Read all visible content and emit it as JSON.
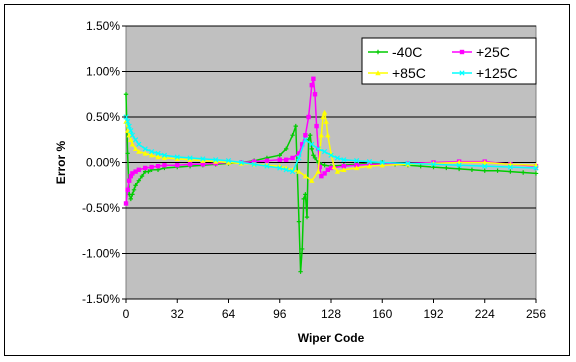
{
  "chart_data": {
    "type": "line",
    "title": "",
    "xlabel": "Wiper Code",
    "ylabel": "Error %",
    "xlim": [
      0,
      256
    ],
    "ylim": [
      -1.5,
      1.5
    ],
    "x_ticks": [
      0,
      32,
      64,
      96,
      128,
      160,
      192,
      224,
      256
    ],
    "y_ticks": [
      1.5,
      1.0,
      0.5,
      0.0,
      -0.5,
      -1.0,
      -1.5
    ],
    "y_tick_labels": [
      "1.50%",
      "1.00%",
      "0.50%",
      "0.00%",
      "-0.50%",
      "-1.00%",
      "-1.50%"
    ],
    "grid": "horizontal",
    "plot_background": "#c0c0c0",
    "legend": {
      "position": "top-right"
    },
    "series": [
      {
        "name": "-40C",
        "color": "#00cc00",
        "marker": "+",
        "x": [
          0,
          1,
          2,
          3,
          4,
          5,
          6,
          8,
          10,
          12,
          14,
          16,
          20,
          24,
          32,
          40,
          48,
          56,
          64,
          72,
          80,
          88,
          96,
          100,
          104,
          106,
          108,
          109,
          110,
          111,
          112,
          113,
          114,
          115,
          116,
          117,
          118,
          120,
          122,
          124,
          128,
          136,
          144,
          152,
          160,
          168,
          176,
          184,
          192,
          200,
          208,
          216,
          224,
          232,
          240,
          248,
          256
        ],
        "values": [
          0.75,
          0.1,
          -0.35,
          -0.4,
          -0.35,
          -0.3,
          -0.25,
          -0.2,
          -0.15,
          -0.1,
          -0.1,
          -0.08,
          -0.08,
          -0.06,
          -0.05,
          -0.04,
          -0.03,
          -0.02,
          -0.01,
          0.0,
          0.02,
          0.05,
          0.08,
          0.15,
          0.3,
          0.4,
          -0.65,
          -1.2,
          -0.95,
          -0.4,
          -0.35,
          -0.6,
          0.25,
          0.3,
          0.15,
          0.08,
          0.05,
          0.0,
          -0.02,
          -0.03,
          -0.04,
          -0.03,
          -0.02,
          -0.01,
          0.0,
          -0.02,
          -0.03,
          -0.04,
          -0.05,
          -0.06,
          -0.07,
          -0.08,
          -0.09,
          -0.09,
          -0.1,
          -0.11,
          -0.12
        ]
      },
      {
        "name": "+25C",
        "color": "#ff00ff",
        "marker": "square",
        "x": [
          0,
          1,
          2,
          3,
          4,
          6,
          8,
          12,
          16,
          20,
          24,
          32,
          40,
          48,
          56,
          64,
          72,
          80,
          88,
          96,
          100,
          104,
          108,
          110,
          112,
          114,
          116,
          117,
          118,
          119,
          120,
          121,
          122,
          124,
          126,
          128,
          136,
          144,
          152,
          160,
          176,
          192,
          208,
          224,
          240,
          256
        ],
        "values": [
          -0.45,
          -0.3,
          -0.2,
          -0.15,
          -0.12,
          -0.1,
          -0.08,
          -0.06,
          -0.05,
          -0.04,
          -0.03,
          -0.03,
          -0.02,
          -0.02,
          -0.01,
          0.0,
          0.0,
          0.01,
          0.02,
          0.03,
          0.03,
          0.05,
          0.1,
          0.2,
          0.3,
          0.5,
          0.85,
          0.92,
          0.75,
          0.4,
          0.15,
          -0.05,
          -0.15,
          -0.12,
          -0.08,
          -0.06,
          -0.04,
          -0.03,
          -0.02,
          -0.02,
          -0.01,
          0.0,
          0.01,
          0.01,
          -0.02,
          -0.04
        ]
      },
      {
        "name": "+85C",
        "color": "#ffff00",
        "marker": "triangle",
        "x": [
          0,
          1,
          2,
          3,
          4,
          6,
          8,
          12,
          16,
          20,
          24,
          32,
          40,
          48,
          56,
          64,
          72,
          80,
          88,
          96,
          100,
          104,
          108,
          112,
          116,
          120,
          122,
          123,
          124,
          125,
          126,
          128,
          130,
          132,
          136,
          144,
          152,
          160,
          176,
          192,
          208,
          224,
          240,
          256
        ],
        "values": [
          0.45,
          0.35,
          0.3,
          0.25,
          0.2,
          0.15,
          0.12,
          0.1,
          0.08,
          0.06,
          0.05,
          0.04,
          0.03,
          0.02,
          0.01,
          0.0,
          -0.01,
          -0.02,
          -0.03,
          -0.04,
          -0.06,
          -0.08,
          -0.1,
          -0.15,
          -0.2,
          -0.1,
          0.3,
          0.5,
          0.55,
          0.45,
          0.3,
          0.1,
          -0.05,
          -0.1,
          -0.08,
          -0.06,
          -0.04,
          -0.03,
          -0.02,
          -0.01,
          0.0,
          0.0,
          -0.02,
          -0.03
        ]
      },
      {
        "name": "+125C",
        "color": "#00ffff",
        "marker": "x",
        "x": [
          0,
          1,
          2,
          3,
          4,
          6,
          8,
          12,
          16,
          20,
          24,
          32,
          40,
          48,
          56,
          64,
          72,
          80,
          88,
          96,
          100,
          104,
          108,
          112,
          116,
          120,
          124,
          128,
          132,
          136,
          144,
          152,
          160,
          176,
          192,
          208,
          224,
          240,
          256
        ],
        "values": [
          0.5,
          0.45,
          0.4,
          0.35,
          0.3,
          0.25,
          0.2,
          0.15,
          0.12,
          0.1,
          0.08,
          0.06,
          0.05,
          0.04,
          0.03,
          0.02,
          0.0,
          -0.02,
          -0.04,
          -0.06,
          -0.08,
          -0.1,
          0.05,
          0.25,
          0.2,
          0.15,
          0.12,
          0.08,
          0.05,
          0.03,
          0.02,
          0.01,
          0.0,
          -0.01,
          -0.02,
          -0.03,
          -0.04,
          -0.05,
          -0.06
        ]
      }
    ]
  }
}
